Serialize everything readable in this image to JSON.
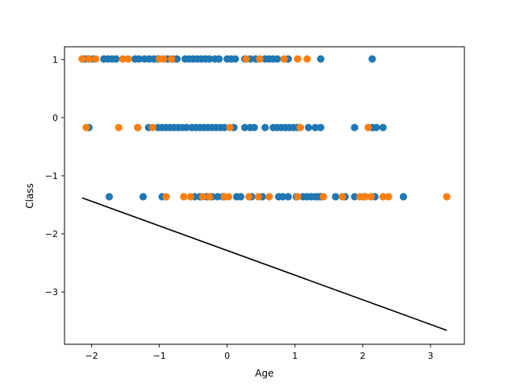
{
  "chart_data": {
    "type": "scatter",
    "xlabel": "Age",
    "ylabel": "Class",
    "xlim": [
      -2.4,
      3.5
    ],
    "ylim": [
      -3.9,
      1.22
    ],
    "x_ticks": [
      -2,
      -1,
      0,
      1,
      2,
      3
    ],
    "y_ticks": [
      1,
      0,
      -1,
      -2,
      -3
    ],
    "x_tick_labels": [
      "−2",
      "−1",
      "0",
      "1",
      "2",
      "3"
    ],
    "y_tick_labels": [
      "1",
      "0",
      "−1",
      "−2",
      "−3"
    ],
    "grid": false,
    "colors": {
      "blue": "#1f77b4",
      "orange": "#ff7f0e",
      "line": "#000000"
    },
    "series": [
      {
        "color": "#1f77b4",
        "points": [
          [
            -2.1,
            1.01
          ],
          [
            -2.05,
            1.01
          ],
          [
            -1.98,
            1.01
          ],
          [
            -1.82,
            1.01
          ],
          [
            -1.76,
            1.01
          ],
          [
            -1.7,
            1.01
          ],
          [
            -1.64,
            1.01
          ],
          [
            -1.36,
            1.01
          ],
          [
            -1.3,
            1.01
          ],
          [
            -1.22,
            1.01
          ],
          [
            -1.15,
            1.01
          ],
          [
            -1.08,
            1.01
          ],
          [
            -1.02,
            1.01
          ],
          [
            -0.88,
            1.01
          ],
          [
            -0.8,
            1.01
          ],
          [
            -0.74,
            1.01
          ],
          [
            -0.62,
            1.01
          ],
          [
            -0.56,
            1.01
          ],
          [
            -0.5,
            1.01
          ],
          [
            -0.44,
            1.01
          ],
          [
            -0.38,
            1.01
          ],
          [
            -0.32,
            1.01
          ],
          [
            -0.26,
            1.01
          ],
          [
            -0.18,
            1.01
          ],
          [
            -0.12,
            1.01
          ],
          [
            0.0,
            1.01
          ],
          [
            0.06,
            1.01
          ],
          [
            0.12,
            1.01
          ],
          [
            0.26,
            1.01
          ],
          [
            0.34,
            1.01
          ],
          [
            0.42,
            1.01
          ],
          [
            0.48,
            1.01
          ],
          [
            0.56,
            1.01
          ],
          [
            0.62,
            1.01
          ],
          [
            0.68,
            1.01
          ],
          [
            0.74,
            1.01
          ],
          [
            0.9,
            1.01
          ],
          [
            1.38,
            1.01
          ],
          [
            2.14,
            1.01
          ],
          [
            -2.04,
            -0.17
          ],
          [
            -1.32,
            -0.17
          ],
          [
            -1.16,
            -0.17
          ],
          [
            -1.02,
            -0.17
          ],
          [
            -0.96,
            -0.17
          ],
          [
            -0.9,
            -0.17
          ],
          [
            -0.84,
            -0.17
          ],
          [
            -0.78,
            -0.17
          ],
          [
            -0.72,
            -0.17
          ],
          [
            -0.66,
            -0.17
          ],
          [
            -0.6,
            -0.17
          ],
          [
            -0.52,
            -0.17
          ],
          [
            -0.46,
            -0.17
          ],
          [
            -0.4,
            -0.17
          ],
          [
            -0.34,
            -0.17
          ],
          [
            -0.28,
            -0.17
          ],
          [
            -0.22,
            -0.17
          ],
          [
            -0.16,
            -0.17
          ],
          [
            -0.1,
            -0.17
          ],
          [
            -0.04,
            -0.17
          ],
          [
            0.1,
            -0.17
          ],
          [
            0.26,
            -0.17
          ],
          [
            0.34,
            -0.17
          ],
          [
            0.4,
            -0.17
          ],
          [
            0.56,
            -0.17
          ],
          [
            0.68,
            -0.17
          ],
          [
            0.74,
            -0.17
          ],
          [
            0.8,
            -0.17
          ],
          [
            0.86,
            -0.17
          ],
          [
            0.92,
            -0.17
          ],
          [
            0.98,
            -0.17
          ],
          [
            1.04,
            -0.17
          ],
          [
            1.2,
            -0.17
          ],
          [
            1.3,
            -0.17
          ],
          [
            1.38,
            -0.17
          ],
          [
            1.88,
            -0.17
          ],
          [
            2.14,
            -0.17
          ],
          [
            2.2,
            -0.17
          ],
          [
            2.3,
            -0.17
          ],
          [
            -1.74,
            -1.36
          ],
          [
            -1.24,
            -1.36
          ],
          [
            -0.96,
            -1.36
          ],
          [
            -0.48,
            -1.36
          ],
          [
            -0.4,
            -1.36
          ],
          [
            -0.3,
            -1.36
          ],
          [
            -0.22,
            -1.36
          ],
          [
            -0.14,
            -1.36
          ],
          [
            -0.06,
            -1.36
          ],
          [
            0.14,
            -1.36
          ],
          [
            0.2,
            -1.36
          ],
          [
            0.36,
            -1.36
          ],
          [
            0.52,
            -1.36
          ],
          [
            0.76,
            -1.36
          ],
          [
            0.82,
            -1.36
          ],
          [
            0.9,
            -1.36
          ],
          [
            1.02,
            -1.36
          ],
          [
            1.12,
            -1.36
          ],
          [
            1.18,
            -1.36
          ],
          [
            1.24,
            -1.36
          ],
          [
            1.3,
            -1.36
          ],
          [
            1.34,
            -1.36
          ],
          [
            1.38,
            -1.36
          ],
          [
            1.6,
            -1.36
          ],
          [
            1.74,
            -1.36
          ],
          [
            1.88,
            -1.36
          ],
          [
            2.02,
            -1.36
          ],
          [
            2.18,
            -1.36
          ],
          [
            2.6,
            -1.36
          ]
        ]
      },
      {
        "color": "#ff7f0e",
        "points": [
          [
            -2.14,
            1.01
          ],
          [
            -2.04,
            1.01
          ],
          [
            -1.94,
            1.01
          ],
          [
            -1.54,
            1.01
          ],
          [
            -1.46,
            1.01
          ],
          [
            -1.0,
            1.01
          ],
          [
            -0.94,
            1.01
          ],
          [
            -0.82,
            1.01
          ],
          [
            0.28,
            1.01
          ],
          [
            0.48,
            1.01
          ],
          [
            0.84,
            1.01
          ],
          [
            1.04,
            1.01
          ],
          [
            1.18,
            1.01
          ],
          [
            -2.08,
            -0.17
          ],
          [
            -1.6,
            -0.17
          ],
          [
            -1.32,
            -0.17
          ],
          [
            -1.1,
            -0.17
          ],
          [
            0.04,
            -0.17
          ],
          [
            1.08,
            -0.17
          ],
          [
            2.08,
            -0.17
          ],
          [
            -0.9,
            -1.36
          ],
          [
            -0.64,
            -1.36
          ],
          [
            -0.54,
            -1.36
          ],
          [
            -0.36,
            -1.36
          ],
          [
            -0.26,
            -1.36
          ],
          [
            -0.04,
            -1.36
          ],
          [
            0.02,
            -1.36
          ],
          [
            0.32,
            -1.36
          ],
          [
            0.46,
            -1.36
          ],
          [
            0.62,
            -1.36
          ],
          [
            1.04,
            -1.36
          ],
          [
            1.42,
            -1.36
          ],
          [
            1.7,
            -1.36
          ],
          [
            1.96,
            -1.36
          ],
          [
            2.04,
            -1.36
          ],
          [
            2.12,
            -1.36
          ],
          [
            2.3,
            -1.36
          ],
          [
            2.38,
            -1.36
          ],
          [
            3.24,
            -1.36
          ]
        ]
      }
    ],
    "line": {
      "x": [
        -2.14,
        3.24
      ],
      "y": [
        -1.38,
        -3.66
      ]
    }
  }
}
